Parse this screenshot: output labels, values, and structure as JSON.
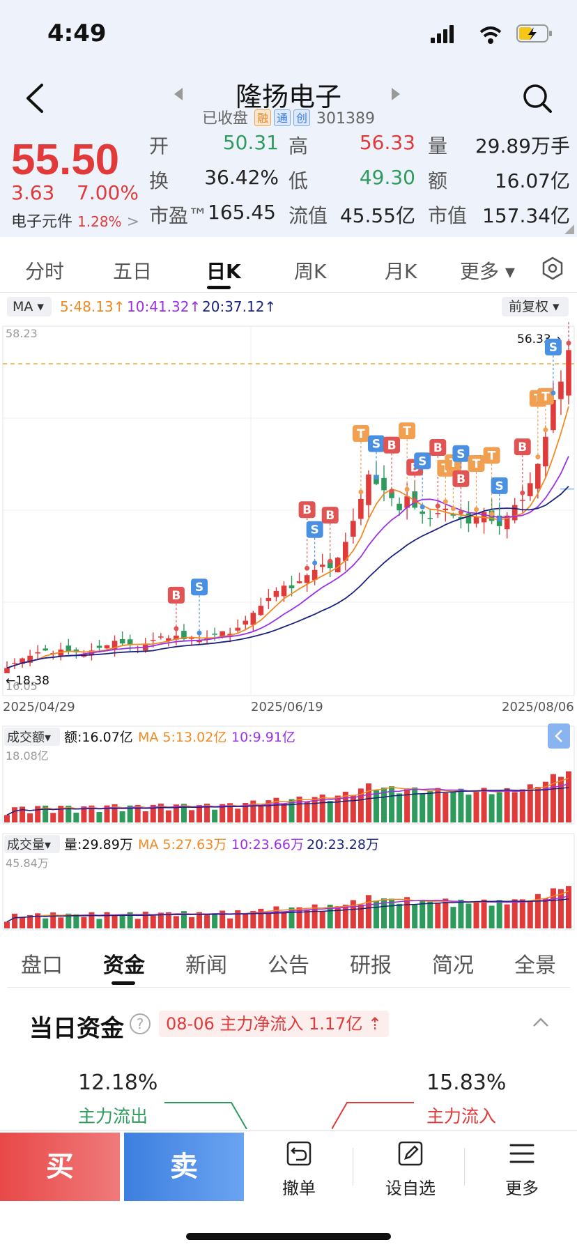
{
  "status": {
    "time": "4:49"
  },
  "header": {
    "title": "隆扬电子",
    "status": "已收盘",
    "tags": [
      "融",
      "通",
      "创"
    ],
    "code": "301389"
  },
  "quote": {
    "price": "55.50",
    "change": "3.63",
    "change_pct": "7.00%",
    "sector_name": "电子元件",
    "sector_pct": "1.28%",
    "sector_arrow": ">",
    "fields": [
      {
        "label": "开",
        "value": "50.31",
        "color": "green"
      },
      {
        "label": "高",
        "value": "56.33",
        "color": "red"
      },
      {
        "label": "量",
        "value": "29.89万手",
        "color": "dark"
      },
      {
        "label": "换",
        "value": "36.42%",
        "color": "dark"
      },
      {
        "label": "低",
        "value": "49.30",
        "color": "green"
      },
      {
        "label": "额",
        "value": "16.07亿",
        "color": "dark"
      },
      {
        "label": "市盈™",
        "value": "165.45",
        "color": "dark"
      },
      {
        "label": "流值",
        "value": "45.55亿",
        "color": "dark"
      },
      {
        "label": "市值",
        "value": "157.34亿",
        "color": "dark"
      }
    ]
  },
  "tabs": [
    "分时",
    "五日",
    "日K",
    "周K",
    "月K",
    "更多 ▾"
  ],
  "active_tab": "日K",
  "ma_bar": {
    "selector": "MA ▾",
    "ma5": "5:48.13↑",
    "ma10": "10:41.32↑",
    "ma20": "20:37.12↑",
    "adjust": "前复权 ▾"
  },
  "kline": {
    "y_top": "58.23",
    "y_bottom": "16.05",
    "high_label": "56.33→",
    "low_label": "←18.38",
    "dates": [
      "2025/04/29",
      "2025/06/19",
      "2025/08/06"
    ]
  },
  "turnover_panel": {
    "selector": "成交额▾",
    "value": "额:16.07亿",
    "ma5": "MA 5:13.02亿",
    "ma10": "10:9.91亿",
    "ymax": "18.08亿"
  },
  "volume_panel": {
    "selector": "成交量▾",
    "value": "量:29.89万",
    "ma5": "MA 5:27.63万",
    "ma10": "10:23.66万",
    "ma20": "20:23.28万",
    "ymax": "45.84万"
  },
  "chart_data": {
    "type": "candlestick",
    "y_range": [
      16.05,
      58.23
    ],
    "x_range": [
      "2025/04/29",
      "2025/08/06"
    ],
    "last": {
      "open": 50.31,
      "high": 56.33,
      "low": 49.3,
      "close": 55.5
    },
    "period_low": 18.38,
    "period_high": 56.33,
    "ma": {
      "ma5": 48.13,
      "ma10": 41.32,
      "ma20": 37.12
    },
    "closes": [
      19.2,
      19.8,
      20.3,
      20.6,
      21.0,
      21.2,
      20.9,
      21.3,
      21.1,
      21.0,
      20.8,
      21.2,
      21.5,
      21.8,
      22.3,
      22.0,
      21.8,
      21.6,
      21.9,
      22.4,
      22.8,
      22.6,
      22.9,
      22.5,
      22.7,
      22.4,
      22.6,
      23.0,
      23.4,
      23.1,
      23.8,
      24.6,
      25.5,
      26.3,
      27.2,
      28.0,
      28.6,
      28.3,
      29.1,
      29.8,
      30.4,
      31.0,
      30.6,
      31.8,
      33.6,
      36.0,
      38.5,
      41.3,
      40.2,
      39.5,
      38.6,
      37.2,
      38.8,
      37.5,
      36.8,
      36.3,
      36.9,
      37.4,
      36.6,
      36.2,
      35.7,
      36.5,
      37.0,
      36.0,
      35.4,
      36.6,
      37.8,
      38.4,
      40.3,
      42.5,
      45.6,
      49.8,
      51.9,
      55.5
    ],
    "colors": {
      "up": "#e03a3a",
      "down": "#2e9a5c",
      "ma5": "#f08a24",
      "ma10": "#9b30e8",
      "ma20": "#1a237e"
    }
  },
  "fund_tabs": [
    "盘口",
    "资金",
    "新闻",
    "公告",
    "研报",
    "简况",
    "全景"
  ],
  "active_fund_tab": "资金",
  "fund": {
    "title": "当日资金",
    "help": "?",
    "badge": "08-06 主力净流入 1.17亿 ⇡",
    "out_pct": "12.18%",
    "out_label": "主力流出",
    "in_pct": "15.83%",
    "in_label": "主力流入"
  },
  "bottom_bar": {
    "buy": "买",
    "sell": "卖",
    "cancel": "撤单",
    "watch": "设自选",
    "more": "更多"
  }
}
